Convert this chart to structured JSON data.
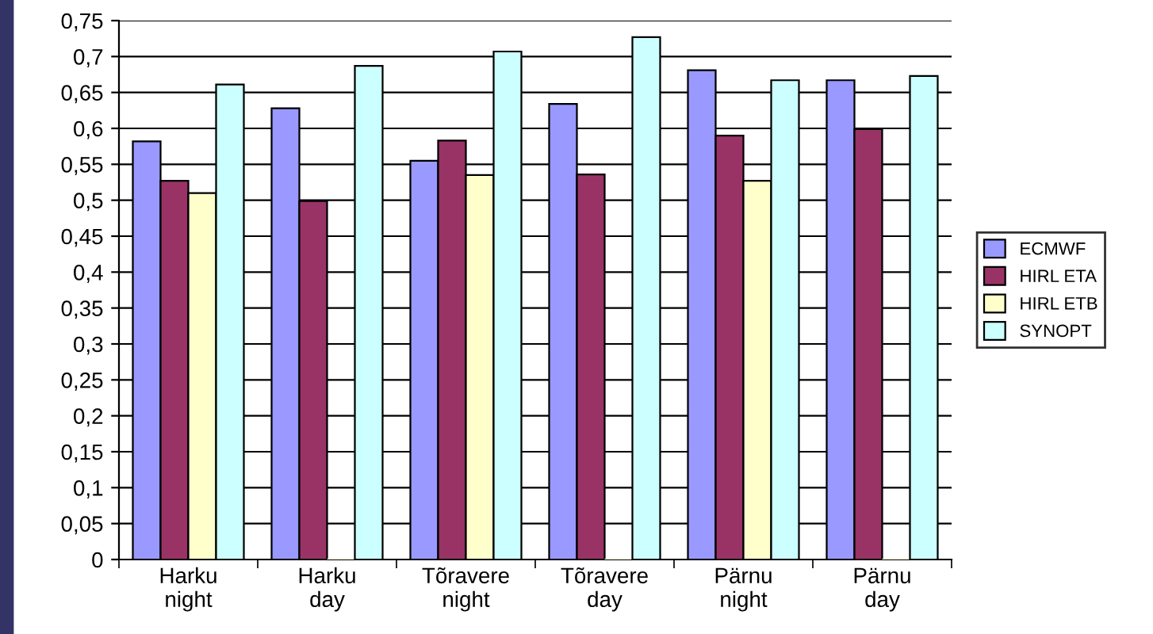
{
  "chart_data": {
    "type": "bar",
    "categories": [
      "Harku\nnight",
      "Harku\nday",
      "Tõravere\nnight",
      "Tõravere\nday",
      "Pärnu\nnight",
      "Pärnu\nday"
    ],
    "series": [
      {
        "name": "ECMWF",
        "color": "#9999ff",
        "values": [
          0.582,
          0.628,
          0.555,
          0.634,
          0.681,
          0.667
        ]
      },
      {
        "name": "HIRL ETA",
        "color": "#993366",
        "values": [
          0.527,
          0.499,
          0.583,
          0.536,
          0.59,
          0.599
        ]
      },
      {
        "name": "HIRL ETB",
        "color": "#ffffcc",
        "values": [
          0.51,
          0,
          0.535,
          0,
          0.527,
          0
        ]
      },
      {
        "name": "SYNOPT",
        "color": "#ccffff",
        "values": [
          0.661,
          0.687,
          0.707,
          0.727,
          0.667,
          0.673
        ]
      }
    ],
    "ylim": [
      0,
      0.75
    ],
    "yticks": [
      0,
      {
        "value": 0.05,
        "label": "0,05"
      },
      {
        "value": 0.1,
        "label": "0,1"
      },
      {
        "value": 0.15,
        "label": "0,15"
      },
      {
        "value": 0.2,
        "label": "0,2"
      },
      {
        "value": 0.25,
        "label": "0,25"
      },
      {
        "value": 0.3,
        "label": "0,3"
      },
      {
        "value": 0.35,
        "label": "0,35"
      },
      {
        "value": 0.4,
        "label": "0,4"
      },
      {
        "value": 0.45,
        "label": "0,45"
      },
      {
        "value": 0.5,
        "label": "0,5"
      },
      {
        "value": 0.55,
        "label": "0,55"
      },
      {
        "value": 0.6,
        "label": "0,6"
      },
      {
        "value": 0.65,
        "label": "0,65"
      },
      {
        "value": 0.7,
        "label": "0,7"
      },
      {
        "value": 0.75,
        "label": "0,75"
      }
    ],
    "grid": "y",
    "legend": "right"
  }
}
